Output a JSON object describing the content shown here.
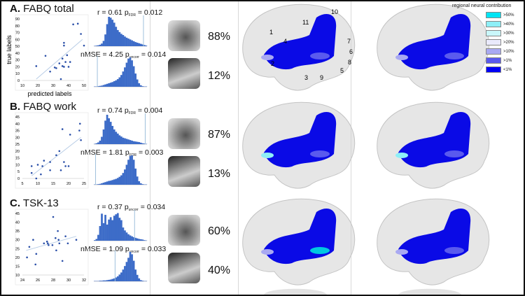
{
  "panels": [
    {
      "letter": "A.",
      "title": "FABQ total",
      "r_text": "r = 0.61 p",
      "r_sub": "FDR",
      "r_p": "= 0.012",
      "nmse_text": "nMSE = 4.25 p",
      "nmse_sub": "uncorr",
      "nmse_p": "= 0.014",
      "percent_top": "88%",
      "percent_bottom": "12%"
    },
    {
      "letter": "B.",
      "title": "FABQ work",
      "r_text": "r = 0.74 p",
      "r_sub": "FDR",
      "r_p": "= 0.004",
      "nmse_text": "nMSE = 1.81 p",
      "nmse_sub": "FDR",
      "nmse_p": "= 0.003",
      "percent_top": "87%",
      "percent_bottom": "13%"
    },
    {
      "letter": "C.",
      "title": "TSK-13",
      "r_text": "r = 0.37 p",
      "r_sub": "uncorr",
      "r_p": "= 0.034",
      "nmse_text": "nMSE = 1.09 p",
      "nmse_sub": "uncorr",
      "nmse_p": "= 0.033",
      "percent_top": "60%",
      "percent_bottom": "40%"
    }
  ],
  "chart_data": [
    {
      "type": "scatter",
      "panel": "A",
      "xlabel": "predicted labels",
      "ylabel": "true labels",
      "xlim": [
        10,
        50
      ],
      "ylim": [
        0,
        90
      ],
      "xticks": [
        10,
        20,
        30,
        40,
        50
      ],
      "yticks": [
        0,
        10,
        20,
        30,
        40,
        50,
        60,
        70,
        80,
        90
      ],
      "points": [
        [
          19,
          21
        ],
        [
          25,
          36
        ],
        [
          28,
          13
        ],
        [
          31,
          19
        ],
        [
          32,
          18
        ],
        [
          34,
          25
        ],
        [
          35,
          2
        ],
        [
          36,
          21
        ],
        [
          36,
          32
        ],
        [
          37,
          20
        ],
        [
          37,
          51
        ],
        [
          37,
          55
        ],
        [
          38,
          27
        ],
        [
          39,
          37
        ],
        [
          40,
          20
        ],
        [
          41,
          27
        ],
        [
          43,
          82
        ],
        [
          46,
          83
        ],
        [
          48,
          68
        ],
        [
          50,
          51
        ]
      ],
      "trendline": [
        [
          19,
          2
        ],
        [
          49,
          60
        ]
      ]
    },
    {
      "type": "scatter",
      "panel": "B",
      "xlim": [
        5,
        25
      ],
      "ylim": [
        0,
        45
      ],
      "xticks": [
        5,
        10,
        15,
        20,
        25
      ],
      "yticks": [
        0,
        5,
        10,
        15,
        20,
        25,
        30,
        35,
        40,
        45
      ],
      "points": [
        [
          8,
          9
        ],
        [
          8,
          4
        ],
        [
          9.5,
          0
        ],
        [
          10,
          10
        ],
        [
          11,
          3
        ],
        [
          11.5,
          9
        ],
        [
          12,
          13
        ],
        [
          14,
          12
        ],
        [
          14,
          6
        ],
        [
          16,
          17
        ],
        [
          17,
          20
        ],
        [
          17.5,
          6
        ],
        [
          18,
          36
        ],
        [
          18.5,
          12
        ],
        [
          19,
          9
        ],
        [
          20,
          9
        ],
        [
          20.5,
          32
        ],
        [
          23.5,
          35
        ],
        [
          23.7,
          40
        ],
        [
          24,
          28
        ]
      ],
      "trendline": [
        [
          8,
          2
        ],
        [
          24,
          30
        ]
      ]
    },
    {
      "type": "scatter",
      "panel": "C",
      "xlim": [
        24,
        32
      ],
      "ylim": [
        10,
        45
      ],
      "xticks": [
        24,
        26,
        28,
        30,
        32
      ],
      "yticks": [
        10,
        15,
        20,
        25,
        30,
        35,
        40,
        45
      ],
      "points": [
        [
          24.6,
          20
        ],
        [
          24.9,
          26
        ],
        [
          25.4,
          30
        ],
        [
          25.7,
          16
        ],
        [
          25.8,
          22
        ],
        [
          26.8,
          28
        ],
        [
          27.2,
          29
        ],
        [
          27.3,
          28
        ],
        [
          27.4,
          27
        ],
        [
          27.9,
          27
        ],
        [
          28,
          43
        ],
        [
          28.3,
          31
        ],
        [
          28.4,
          24
        ],
        [
          28.6,
          35
        ],
        [
          28.7,
          30
        ],
        [
          28.8,
          28
        ],
        [
          29.2,
          18
        ],
        [
          29.6,
          32
        ],
        [
          29.9,
          28
        ],
        [
          31,
          30
        ]
      ],
      "trendline": [
        [
          24.5,
          24
        ],
        [
          31,
          32
        ]
      ]
    },
    {
      "type": "bar",
      "panel": "A",
      "role": "r null distribution",
      "values": [
        1,
        2,
        3,
        5,
        9,
        18,
        40,
        75,
        100,
        97,
        90,
        80,
        66,
        55,
        48,
        42,
        38,
        33,
        29,
        26,
        23,
        20,
        17,
        14,
        12,
        10,
        8,
        6,
        4,
        2
      ],
      "observed_bin": 28
    },
    {
      "type": "bar",
      "panel": "A",
      "role": "nMSE null distribution",
      "values": [
        1,
        1,
        2,
        3,
        4,
        6,
        8,
        10,
        12,
        14,
        16,
        19,
        22,
        26,
        32,
        40,
        52,
        66,
        82,
        96,
        100,
        90,
        70,
        45,
        25,
        12,
        5,
        2,
        1,
        1
      ],
      "observed_bin": 2
    },
    {
      "type": "bar",
      "panel": "B",
      "role": "r null distribution",
      "values": [
        1,
        3,
        6,
        12,
        25,
        50,
        80,
        100,
        88,
        76,
        62,
        50,
        42,
        36,
        30,
        26,
        22,
        20,
        18,
        16,
        14,
        12,
        10,
        9,
        8,
        7,
        5,
        3,
        2,
        1
      ],
      "observed_bin": 29
    },
    {
      "type": "bar",
      "panel": "B",
      "role": "nMSE null distribution",
      "values": [
        1,
        1,
        2,
        3,
        5,
        7,
        9,
        11,
        13,
        14,
        16,
        18,
        20,
        23,
        27,
        32,
        40,
        52,
        68,
        85,
        98,
        100,
        85,
        55,
        28,
        12,
        5,
        2,
        1,
        1
      ],
      "observed_bin": 1
    },
    {
      "type": "bar",
      "panel": "C",
      "role": "r null distribution",
      "values": [
        2,
        6,
        20,
        50,
        92,
        60,
        88,
        55,
        72,
        80,
        70,
        85,
        90,
        94,
        78,
        70,
        45,
        35,
        28,
        22,
        18,
        15,
        12,
        10,
        8,
        6,
        5,
        4,
        2,
        1
      ],
      "observed_bin": 23
    },
    {
      "type": "bar",
      "panel": "C",
      "role": "nMSE null distribution",
      "values": [
        1,
        1,
        1,
        2,
        2,
        3,
        3,
        4,
        5,
        6,
        8,
        10,
        13,
        17,
        23,
        30,
        40,
        52,
        66,
        80,
        100,
        92,
        70,
        40,
        22,
        10,
        4,
        2,
        1,
        1
      ],
      "observed_bin": 12
    }
  ],
  "brain_labels": [
    "1",
    "2",
    "3",
    "4",
    "5",
    "6",
    "7",
    "8",
    "9",
    "10",
    "11"
  ],
  "legend": {
    "title": "regional neural contribution",
    "items": [
      {
        "label": ">50%",
        "color": "#00e4f4"
      },
      {
        "label": ">40%",
        "color": "#8eeff7"
      },
      {
        "label": ">30%",
        "color": "#c9f7fa"
      },
      {
        "label": ">20%",
        "color": "#eaeafc"
      },
      {
        "label": ">10%",
        "color": "#a9a9f2"
      },
      {
        "label": ">1%",
        "color": "#5a5aee"
      },
      {
        "label": "<1%",
        "color": "#0000f5"
      }
    ]
  },
  "colors": {
    "points": "#2a4fa8",
    "bars": "#3d6cc8",
    "trend": "#b8cde6",
    "brain_region": "#0a0ae6"
  }
}
